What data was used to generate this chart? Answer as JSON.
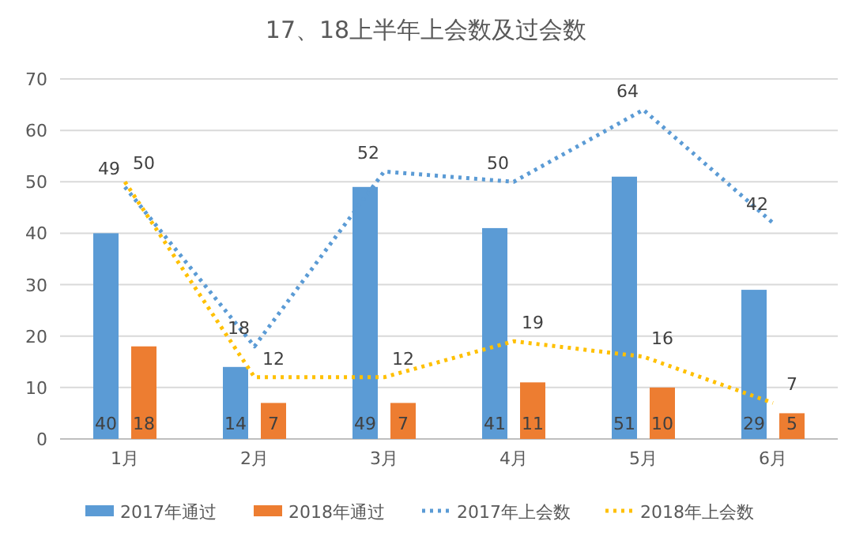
{
  "chart_data": {
    "type": "bar",
    "title": "17、18上半年上会数及过会数",
    "categories": [
      "1月",
      "2月",
      "3月",
      "4月",
      "5月",
      "6月"
    ],
    "series": [
      {
        "name": "2017年通过",
        "color": "#5b9bd5",
        "values": [
          40,
          14,
          49,
          41,
          51,
          29
        ]
      },
      {
        "name": "2018年通过",
        "color": "#ed7d31",
        "values": [
          18,
          7,
          7,
          11,
          10,
          5
        ]
      },
      {
        "name": "2017年上会数",
        "type": "line",
        "line_style": "dotted",
        "color": "#5b9bd5",
        "values": [
          49,
          18,
          52,
          50,
          64,
          42
        ]
      },
      {
        "name": "2018年上会数",
        "type": "line",
        "line_style": "dotted",
        "color": "#ffc000",
        "values": [
          50,
          12,
          12,
          19,
          16,
          7
        ]
      }
    ],
    "ylim": [
      0,
      70
    ],
    "yticks": [
      0,
      10,
      20,
      30,
      40,
      50,
      60,
      70
    ],
    "grid": "y",
    "legend": "bottom",
    "data_labels": true,
    "marker": "none"
  }
}
